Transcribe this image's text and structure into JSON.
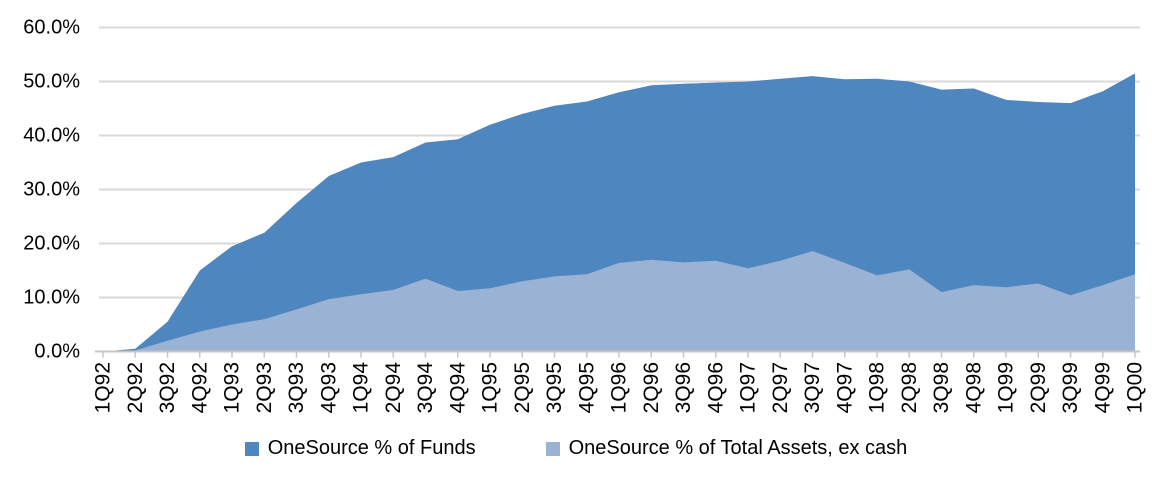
{
  "chart_data": {
    "type": "area",
    "title": "",
    "xlabel": "",
    "ylabel": "",
    "ylim": [
      0,
      60
    ],
    "y_tick_step": 10,
    "y_tick_labels": [
      "0.0%",
      "10.0%",
      "20.0%",
      "30.0%",
      "40.0%",
      "50.0%",
      "60.0%"
    ],
    "grid": "horizontal",
    "grid_color": "#D9D9D9",
    "axis_color": "#C6C6C6",
    "legend_position": "bottom",
    "overlapping_areas": true,
    "categories": [
      "1Q92",
      "2Q92",
      "3Q92",
      "4Q92",
      "1Q93",
      "2Q93",
      "3Q93",
      "4Q93",
      "1Q94",
      "2Q94",
      "3Q94",
      "4Q94",
      "1Q95",
      "2Q95",
      "3Q95",
      "4Q95",
      "1Q96",
      "2Q96",
      "3Q96",
      "4Q96",
      "1Q97",
      "2Q97",
      "3Q97",
      "4Q97",
      "1Q98",
      "2Q98",
      "3Q98",
      "4Q98",
      "1Q99",
      "2Q99",
      "3Q99",
      "4Q99",
      "1Q00"
    ],
    "series": [
      {
        "name": "OneSource % of Funds",
        "color": "#4E86BF",
        "values": [
          0,
          0.5,
          5.5,
          15.0,
          19.5,
          22.0,
          27.5,
          32.5,
          35.0,
          36.0,
          38.7,
          39.3,
          42.0,
          44.0,
          45.5,
          46.3,
          48.0,
          49.3,
          49.6,
          49.8,
          50.0,
          50.5,
          51.0,
          50.4,
          50.5,
          50.0,
          48.5,
          48.7,
          46.6,
          46.2,
          46.0,
          48.2,
          51.5
        ]
      },
      {
        "name": "OneSource % of Total Assets, ex cash",
        "color": "#9AB2D3",
        "values": [
          0,
          0.2,
          2.0,
          3.7,
          5.0,
          6.0,
          7.8,
          9.7,
          10.6,
          11.4,
          13.5,
          11.2,
          11.7,
          13.0,
          13.9,
          14.3,
          16.4,
          17.0,
          16.5,
          16.8,
          15.4,
          16.8,
          18.6,
          16.4,
          14.1,
          15.2,
          11.0,
          12.3,
          11.9,
          12.6,
          10.4,
          12.3,
          14.3
        ]
      }
    ]
  }
}
